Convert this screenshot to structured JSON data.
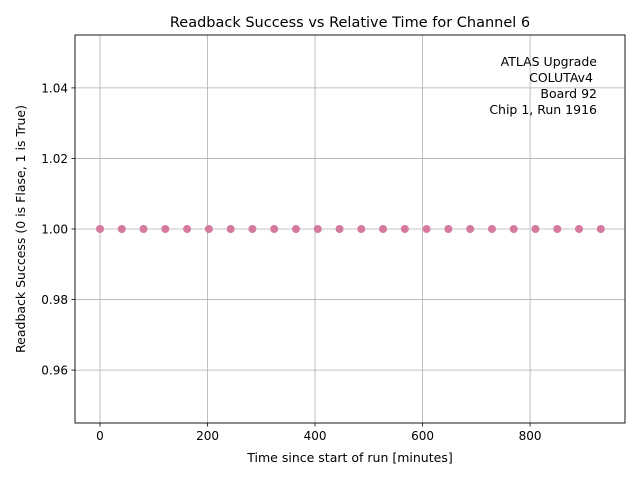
{
  "chart_data": {
    "type": "scatter",
    "title": "Readback Success vs Relative Time for Channel 6",
    "xlabel": "Time since start of run [minutes]",
    "ylabel": "Readback Success (0 is Flase, 1 is True)",
    "xlim": [
      -46.5,
      976.5
    ],
    "ylim": [
      0.945,
      1.055
    ],
    "x_ticks": [
      0,
      200,
      400,
      600,
      800
    ],
    "x_tick_labels": [
      "0",
      "200",
      "400",
      "600",
      "800"
    ],
    "y_ticks": [
      0.96,
      0.98,
      1.0,
      1.02,
      1.04
    ],
    "y_tick_labels": [
      "0.96",
      "0.98",
      "1.00",
      "1.02",
      "1.04"
    ],
    "grid": true,
    "annotation": [
      "ATLAS Upgrade",
      "COLUTAv4",
      "Board 92",
      "Chip 1, Run 1916"
    ],
    "marker_color": "#d6799f",
    "series": [
      {
        "x": [
          0,
          40.5,
          81,
          121.5,
          162,
          202.5,
          243,
          283.5,
          324,
          364.5,
          405,
          445.5,
          486,
          526.5,
          567,
          607.5,
          648,
          688.5,
          729,
          769.5,
          810,
          850.5,
          891,
          931.5
        ],
        "y": [
          1,
          1,
          1,
          1,
          1,
          1,
          1,
          1,
          1,
          1,
          1,
          1,
          1,
          1,
          1,
          1,
          1,
          1,
          1,
          1,
          1,
          1,
          1,
          1
        ]
      }
    ]
  }
}
